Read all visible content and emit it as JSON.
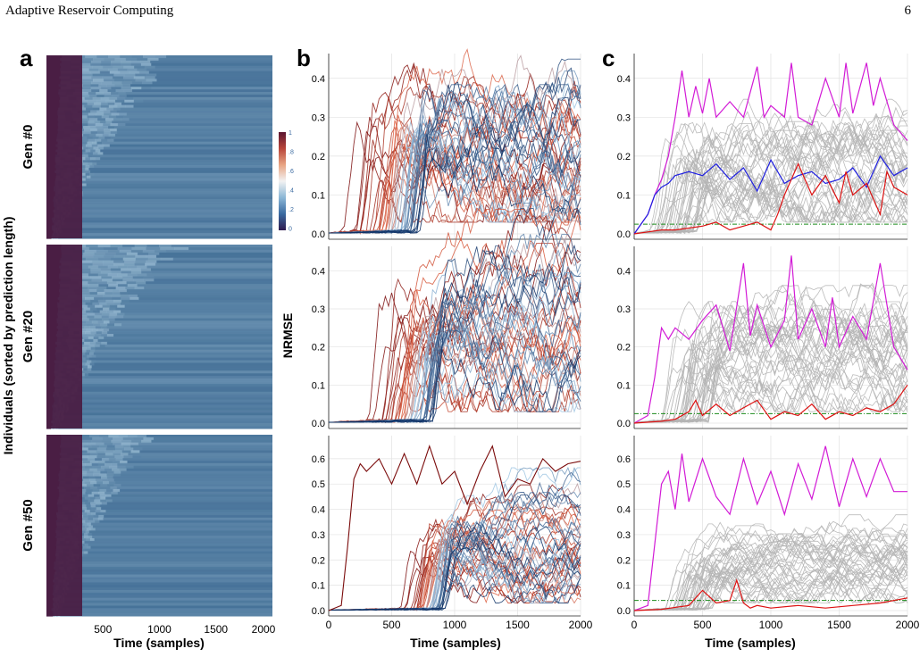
{
  "header": {
    "title": "Adaptive Reservoir Computing",
    "page_number": "6"
  },
  "panel_labels": {
    "a": "a",
    "b": "b",
    "c": "c"
  },
  "panel_a": {
    "ylabel": "Individuals (sorted by prediction length)",
    "xlabel": "Time (samples)",
    "xticks": [
      "500",
      "1000",
      "1500",
      "2000"
    ],
    "generations": [
      "Gen #0",
      "Gen #20",
      "Gen #50"
    ],
    "colorbar": {
      "ticks": [
        "1",
        ".8",
        ".6",
        ".4",
        ".2",
        "0"
      ],
      "colors": [
        "#5a1530",
        "#b8453a",
        "#e8a483",
        "#f2f2f2",
        "#8cb7d6",
        "#3a6aa0",
        "#2e1a4f"
      ]
    },
    "colors": {
      "cold": "#4a1f45",
      "field": "#3d6a92",
      "bright": "#a8c8dd"
    }
  },
  "chart_data": [
    {
      "id": "b",
      "type": "line",
      "title": "",
      "xlabel": "Time (samples)",
      "ylabel": "NRMSE",
      "xlim": [
        0,
        2000
      ],
      "xticks": [
        0,
        500,
        1000,
        1500,
        2000
      ],
      "rows": [
        {
          "generation": "Gen #0",
          "ylim": [
            0,
            0.45
          ],
          "yticks": [
            "0.0",
            "0.1",
            "0.2",
            "0.3",
            "0.4"
          ],
          "yticks_values": [
            0,
            0.1,
            0.2,
            0.3,
            0.4
          ],
          "series_summary": "ensemble of individuals colored by prediction length (red = short, blue = long)",
          "onset_range": [
            100,
            700
          ],
          "plateau": [
            0.05,
            0.42
          ]
        },
        {
          "generation": "Gen #20",
          "ylim": [
            0,
            0.45
          ],
          "yticks": [
            "0.0",
            "0.1",
            "0.2",
            "0.3",
            "0.4"
          ],
          "yticks_values": [
            0,
            0.1,
            0.2,
            0.3,
            0.4
          ],
          "onset_range": [
            300,
            800
          ],
          "plateau": [
            0.05,
            0.43
          ]
        },
        {
          "generation": "Gen #50",
          "ylim": [
            0,
            0.67
          ],
          "yticks": [
            "0.0",
            "0.1",
            "0.2",
            "0.3",
            "0.4",
            "0.5",
            "0.6"
          ],
          "yticks_values": [
            0,
            0.1,
            0.2,
            0.3,
            0.4,
            0.5,
            0.6
          ],
          "onset_range": [
            550,
            900
          ],
          "plateau": [
            0.05,
            0.42
          ],
          "outlier": {
            "x": [
              0,
              100,
              150,
              200,
              250,
              300,
              400,
              500,
              600,
              700,
              800,
              900,
              1000,
              1100,
              1200,
              1300,
              1400,
              1500,
              1600,
              1700,
              1800,
              1900,
              2000
            ],
            "y": [
              0.0,
              0.02,
              0.25,
              0.52,
              0.58,
              0.55,
              0.6,
              0.5,
              0.62,
              0.5,
              0.65,
              0.5,
              0.55,
              0.42,
              0.55,
              0.65,
              0.45,
              0.52,
              0.5,
              0.6,
              0.55,
              0.58,
              0.59
            ]
          }
        }
      ],
      "colors": {
        "short": "#7a0a0a",
        "mid": "#e06040",
        "long": "#0c2e63",
        "light": "#9fc6e4"
      }
    },
    {
      "id": "c",
      "type": "line",
      "title": "",
      "xlabel": "Time (samples)",
      "xlim": [
        0,
        2000
      ],
      "xticks": [
        0,
        500,
        1000,
        1500,
        2000
      ],
      "rows": [
        {
          "generation": "Gen #0",
          "ylim": [
            0,
            0.45
          ],
          "yticks": [
            "0.0",
            "0.1",
            "0.2",
            "0.3",
            "0.4"
          ],
          "yticks_values": [
            0,
            0.1,
            0.2,
            0.3,
            0.4
          ],
          "threshold": 0.025,
          "series": [
            {
              "color": "#d21ad6",
              "x": [
                0,
                100,
                150,
                200,
                250,
                300,
                350,
                400,
                450,
                500,
                550,
                600,
                700,
                800,
                900,
                950,
                1000,
                1100,
                1150,
                1200,
                1300,
                1400,
                1500,
                1550,
                1600,
                1700,
                1750,
                1800,
                1900,
                2000
              ],
              "y": [
                0,
                0.05,
                0.1,
                0.14,
                0.2,
                0.3,
                0.42,
                0.3,
                0.38,
                0.31,
                0.4,
                0.3,
                0.34,
                0.3,
                0.43,
                0.3,
                0.33,
                0.3,
                0.44,
                0.3,
                0.28,
                0.4,
                0.3,
                0.44,
                0.31,
                0.44,
                0.33,
                0.4,
                0.28,
                0.24
              ]
            },
            {
              "color": "#1f1fe0",
              "x": [
                0,
                100,
                150,
                200,
                250,
                300,
                400,
                500,
                600,
                700,
                800,
                900,
                1000,
                1100,
                1200,
                1300,
                1400,
                1500,
                1600,
                1700,
                1800,
                1900,
                2000
              ],
              "y": [
                0,
                0.05,
                0.1,
                0.12,
                0.13,
                0.15,
                0.16,
                0.15,
                0.18,
                0.14,
                0.17,
                0.11,
                0.19,
                0.13,
                0.15,
                0.16,
                0.13,
                0.14,
                0.17,
                0.12,
                0.2,
                0.15,
                0.17
              ]
            },
            {
              "color": "#dd1111",
              "x": [
                0,
                100,
                200,
                300,
                400,
                500,
                600,
                700,
                800,
                900,
                1000,
                1050,
                1100,
                1200,
                1300,
                1400,
                1500,
                1550,
                1600,
                1700,
                1800,
                1850,
                1900,
                2000
              ],
              "y": [
                0,
                0.005,
                0.01,
                0.01,
                0.015,
                0.02,
                0.03,
                0.01,
                0.02,
                0.03,
                0.01,
                0.05,
                0.1,
                0.18,
                0.1,
                0.15,
                0.08,
                0.16,
                0.1,
                0.13,
                0.05,
                0.16,
                0.12,
                0.1
              ]
            }
          ]
        },
        {
          "generation": "Gen #20",
          "ylim": [
            0,
            0.45
          ],
          "yticks": [
            "0.0",
            "0.1",
            "0.2",
            "0.3",
            "0.4"
          ],
          "yticks_values": [
            0,
            0.1,
            0.2,
            0.3,
            0.4
          ],
          "threshold": 0.025,
          "series": [
            {
              "color": "#d21ad6",
              "x": [
                0,
                100,
                150,
                200,
                250,
                300,
                400,
                500,
                600,
                700,
                800,
                850,
                900,
                1000,
                1100,
                1150,
                1200,
                1300,
                1400,
                1450,
                1500,
                1600,
                1700,
                1800,
                1900,
                2000
              ],
              "y": [
                0,
                0.02,
                0.12,
                0.25,
                0.22,
                0.25,
                0.22,
                0.27,
                0.31,
                0.19,
                0.42,
                0.23,
                0.31,
                0.2,
                0.27,
                0.44,
                0.22,
                0.3,
                0.2,
                0.33,
                0.2,
                0.28,
                0.22,
                0.42,
                0.2,
                0.14
              ]
            },
            {
              "color": "#dd1111",
              "x": [
                0,
                200,
                300,
                400,
                450,
                500,
                600,
                700,
                800,
                900,
                1000,
                1100,
                1200,
                1300,
                1400,
                1500,
                1600,
                1700,
                1800,
                1900,
                2000
              ],
              "y": [
                0,
                0.005,
                0.01,
                0.03,
                0.06,
                0.02,
                0.05,
                0.02,
                0.04,
                0.06,
                0.01,
                0.03,
                0.02,
                0.05,
                0.01,
                0.03,
                0.02,
                0.04,
                0.03,
                0.05,
                0.1
              ]
            }
          ]
        },
        {
          "generation": "Gen #50",
          "ylim": [
            0,
            0.67
          ],
          "yticks": [
            "0.0",
            "0.1",
            "0.2",
            "0.3",
            "0.4",
            "0.5",
            "0.6"
          ],
          "yticks_values": [
            0,
            0.1,
            0.2,
            0.3,
            0.4,
            0.5,
            0.6
          ],
          "threshold": 0.04,
          "series": [
            {
              "color": "#d21ad6",
              "x": [
                0,
                100,
                200,
                250,
                300,
                350,
                400,
                500,
                600,
                700,
                800,
                900,
                1000,
                1100,
                1200,
                1300,
                1400,
                1500,
                1600,
                1700,
                1800,
                1900,
                2000
              ],
              "y": [
                0,
                0.02,
                0.5,
                0.55,
                0.4,
                0.62,
                0.43,
                0.6,
                0.45,
                0.38,
                0.6,
                0.42,
                0.55,
                0.38,
                0.58,
                0.44,
                0.65,
                0.41,
                0.6,
                0.45,
                0.6,
                0.47,
                0.47
              ]
            },
            {
              "color": "#dd1111",
              "x": [
                0,
                200,
                400,
                500,
                600,
                700,
                750,
                800,
                850,
                900,
                1000,
                1200,
                1400,
                1600,
                1800,
                2000
              ],
              "y": [
                0,
                0.005,
                0.02,
                0.08,
                0.03,
                0.04,
                0.12,
                0.03,
                0.01,
                0.02,
                0.01,
                0.02,
                0.01,
                0.02,
                0.03,
                0.05
              ]
            }
          ]
        }
      ],
      "colors": {
        "ensemble": "#b5b5b5",
        "best": "#dd1111",
        "worst": "#d21ad6",
        "mean": "#1f1fe0",
        "threshold": "#1a8a1a"
      }
    }
  ]
}
